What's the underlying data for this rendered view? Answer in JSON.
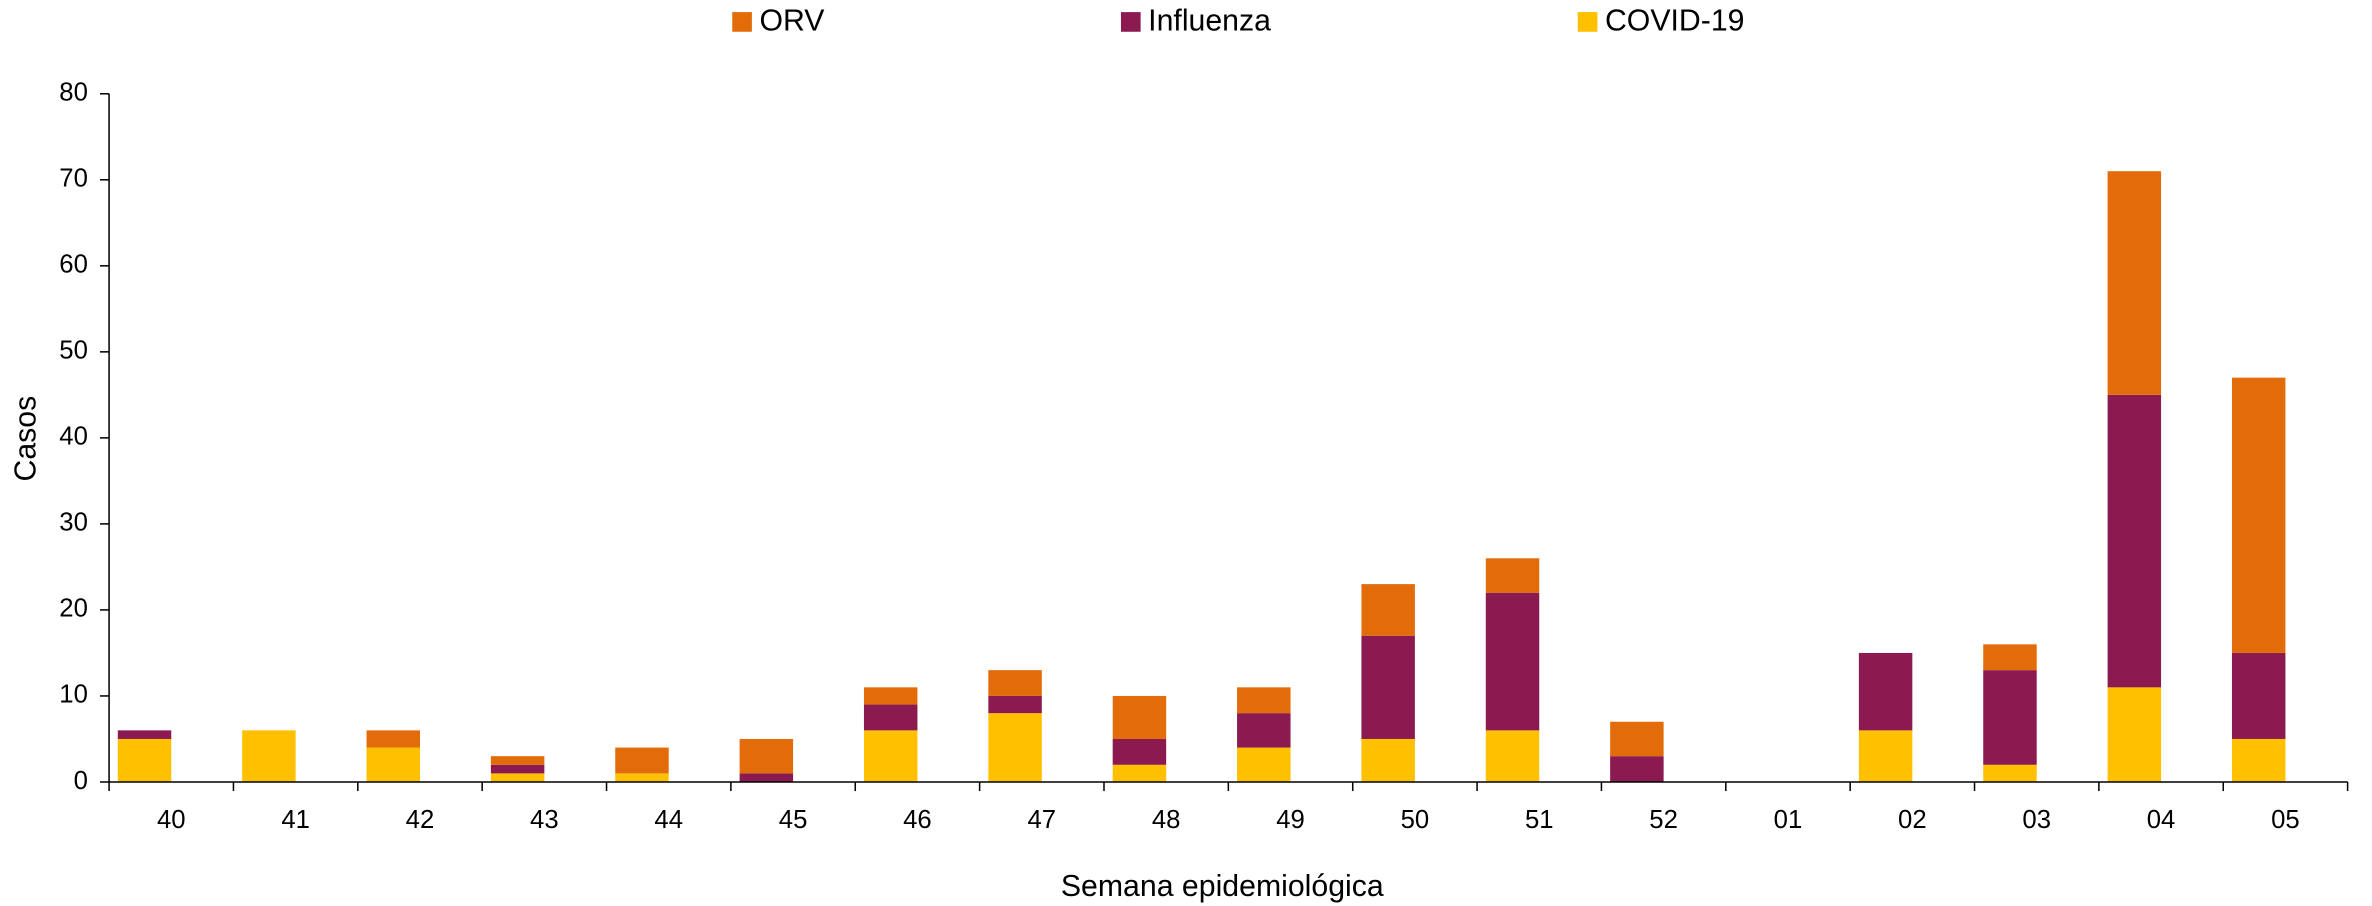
{
  "chart_data": {
    "type": "stacked-bar",
    "x_label": "Semana epidemiológica",
    "y_label": "Casos",
    "categories": [
      "40",
      "41",
      "42",
      "43",
      "44",
      "45",
      "46",
      "47",
      "48",
      "49",
      "50",
      "51",
      "52",
      "01",
      "02",
      "03",
      "04",
      "05"
    ],
    "series": [
      {
        "name": "ORV",
        "color": "#E36C0A",
        "values": [
          0,
          0,
          2,
          1,
          3,
          4,
          2,
          3,
          5,
          3,
          6,
          4,
          4,
          0,
          0,
          3,
          26,
          32
        ]
      },
      {
        "name": "Influenza",
        "color": "#8B1A50",
        "values": [
          1,
          0,
          0,
          1,
          0,
          1,
          3,
          2,
          3,
          4,
          12,
          16,
          3,
          0,
          9,
          11,
          34,
          10
        ]
      },
      {
        "name": "COVID-19",
        "color": "#FFC000",
        "values": [
          5,
          6,
          4,
          1,
          1,
          0,
          6,
          8,
          2,
          4,
          5,
          6,
          0,
          0,
          6,
          2,
          11,
          5
        ]
      }
    ],
    "ylim": [
      0,
      80
    ],
    "yticks": [
      0,
      10,
      20,
      30,
      40,
      50,
      60,
      70,
      80
    ],
    "legend": "top"
  }
}
